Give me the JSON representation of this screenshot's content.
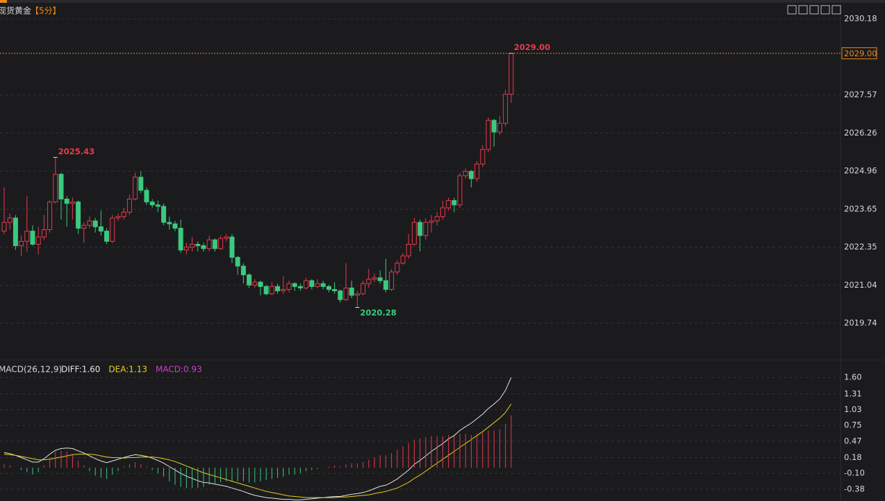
{
  "chart_data": {
    "type": "candlestick",
    "title": "现货黄金",
    "period": "【5分】",
    "open": [
      2022.9,
      2023.2,
      2023.35,
      2022.4,
      2022.55,
      2022.9,
      2022.45,
      2022.7,
      2022.95,
      2023.9,
      2024.85,
      2024.0,
      2023.85,
      2023.9,
      2023.0,
      2023.1,
      2023.25,
      2023.05,
      2022.9,
      2022.55,
      2023.35,
      2023.4,
      2023.55,
      2024.0,
      2024.75,
      2024.3,
      2023.9,
      2023.8,
      2023.75,
      2023.2,
      2023.15,
      2023.0,
      2022.25,
      2022.35,
      2022.45,
      2022.4,
      2022.3,
      2022.6,
      2022.3,
      2022.65,
      2022.7,
      2022.0,
      2021.7,
      2021.4,
      2021.05,
      2021.15,
      2021.0,
      2020.75,
      2021.0,
      2020.85,
      2020.9,
      2021.1,
      2021.0,
      2020.95,
      2021.2,
      2021.0,
      2021.1,
      2021.0,
      2020.9,
      2020.85,
      2020.55,
      2020.95,
      2020.7,
      2020.75,
      2021.1,
      2021.25,
      2021.3,
      2021.2,
      2020.9,
      2021.5,
      2021.8,
      2022.05,
      2022.45,
      2023.2,
      2022.75,
      2023.2,
      2023.25,
      2023.4,
      2023.7,
      2023.95,
      2023.8,
      2024.8,
      2024.95,
      2024.7,
      2025.2,
      2025.7,
      2026.7,
      2026.3,
      2026.6,
      2027.6
    ],
    "high": [
      2024.4,
      2023.5,
      2023.45,
      2022.75,
      2024.1,
      2023.1,
      2023.05,
      2023.45,
      2023.95,
      2025.43,
      2024.9,
      2024.1,
      2024.05,
      2023.95,
      2023.2,
      2023.4,
      2023.35,
      2023.6,
      2023.0,
      2023.45,
      2023.5,
      2023.7,
      2024.15,
      2024.9,
      2024.95,
      2024.4,
      2024.0,
      2023.95,
      2023.85,
      2023.4,
      2023.25,
      2023.3,
      2022.5,
      2022.7,
      2022.55,
      2022.5,
      2022.75,
      2022.65,
      2022.75,
      2022.8,
      2022.8,
      2022.05,
      2021.8,
      2021.45,
      2021.25,
      2021.2,
      2021.05,
      2021.15,
      2021.1,
      2021.35,
      2021.2,
      2021.15,
      2021.1,
      2021.3,
      2021.25,
      2021.25,
      2021.2,
      2021.05,
      2021.15,
      2020.9,
      2021.8,
      2021.2,
      2020.85,
      2021.2,
      2021.6,
      2021.45,
      2021.55,
      2021.95,
      2021.6,
      2021.9,
      2022.15,
      2022.8,
      2023.35,
      2023.3,
      2023.35,
      2023.45,
      2023.55,
      2023.95,
      2024.05,
      2024.05,
      2024.9,
      2025.05,
      2025.0,
      2025.3,
      2025.85,
      2026.8,
      2026.75,
      2026.85,
      2027.75,
      2029.0
    ],
    "low": [
      2022.8,
      2022.95,
      2022.25,
      2022.05,
      2022.2,
      2022.4,
      2022.1,
      2022.6,
      2022.85,
      2023.85,
      2023.3,
      2023.05,
      2023.3,
      2022.8,
      2022.5,
      2023.0,
      2022.85,
      2022.75,
      2022.45,
      2022.5,
      2023.25,
      2023.3,
      2023.45,
      2023.95,
      2024.2,
      2023.8,
      2023.7,
      2023.55,
      2023.1,
      2022.95,
      2022.9,
      2022.15,
      2022.1,
      2022.2,
      2022.2,
      2022.2,
      2022.2,
      2022.2,
      2022.25,
      2022.55,
      2021.8,
      2021.4,
      2021.1,
      2020.95,
      2020.95,
      2020.7,
      2020.7,
      2020.7,
      2020.75,
      2020.75,
      2020.8,
      2020.85,
      2020.85,
      2020.9,
      2020.9,
      2020.95,
      2020.9,
      2020.8,
      2020.75,
      2020.45,
      2020.5,
      2020.6,
      2020.28,
      2020.7,
      2020.95,
      2021.15,
      2021.1,
      2020.8,
      2020.85,
      2021.4,
      2021.75,
      2021.95,
      2022.4,
      2022.2,
      2022.6,
      2022.85,
      2023.1,
      2023.3,
      2023.6,
      2023.55,
      2023.7,
      2024.7,
      2024.4,
      2024.6,
      2025.1,
      2025.6,
      2025.8,
      2026.2,
      2026.5,
      2027.3
    ],
    "close": [
      2023.2,
      2023.35,
      2022.4,
      2022.55,
      2022.9,
      2022.45,
      2022.7,
      2022.95,
      2023.9,
      2024.85,
      2024.0,
      2023.85,
      2023.9,
      2023.0,
      2023.1,
      2023.25,
      2023.05,
      2022.9,
      2022.55,
      2023.35,
      2023.4,
      2023.55,
      2024.0,
      2024.75,
      2024.3,
      2023.9,
      2023.8,
      2023.75,
      2023.2,
      2023.15,
      2023.0,
      2022.25,
      2022.35,
      2022.45,
      2022.4,
      2022.3,
      2022.6,
      2022.3,
      2022.65,
      2022.7,
      2022.0,
      2021.7,
      2021.4,
      2021.05,
      2021.15,
      2021.0,
      2020.75,
      2021.0,
      2020.85,
      2020.9,
      2021.1,
      2021.0,
      2020.95,
      2021.2,
      2021.0,
      2021.1,
      2021.0,
      2020.9,
      2020.85,
      2020.55,
      2020.95,
      2020.7,
      2020.75,
      2021.1,
      2021.25,
      2021.3,
      2021.2,
      2020.9,
      2021.5,
      2021.8,
      2022.05,
      2022.45,
      2023.2,
      2022.75,
      2023.2,
      2023.25,
      2023.4,
      2023.7,
      2023.95,
      2023.8,
      2024.8,
      2024.95,
      2024.7,
      2025.2,
      2025.7,
      2026.7,
      2026.3,
      2026.6,
      2027.6,
      2029.0
    ],
    "up_color": "#e8394e",
    "down_color": "#3cc97f",
    "ylim": [
      2018.91,
      2030.59
    ],
    "yticks": [
      2030.18,
      2027.57,
      2026.26,
      2024.96,
      2023.65,
      2022.35,
      2021.04,
      2019.74
    ],
    "grid": true,
    "annotations": [
      {
        "value": 2025.43,
        "label": "2025.43"
      },
      {
        "value": 2020.28,
        "label": "2020.28"
      },
      {
        "value": 2029,
        "label": "2029.00"
      }
    ],
    "last_price": {
      "value": 2029,
      "label": "2029.00"
    },
    "macd": {
      "indicator": "MACD(26,12,9)",
      "legend": [
        "DIFF:1.60",
        "DEA:1.13",
        "MACD:0.93"
      ],
      "series": [
        {
          "name": "DIFF",
          "color": "#e6e6e6",
          "values": [
            0.27,
            0.25,
            0.22,
            0.18,
            0.14,
            0.1,
            0.1,
            0.16,
            0.24,
            0.31,
            0.34,
            0.35,
            0.34,
            0.3,
            0.26,
            0.21,
            0.16,
            0.12,
            0.09,
            0.12,
            0.15,
            0.18,
            0.21,
            0.23,
            0.22,
            0.2,
            0.17,
            0.13,
            0.08,
            0.02,
            -0.04,
            -0.1,
            -0.15,
            -0.19,
            -0.23,
            -0.26,
            -0.27,
            -0.29,
            -0.31,
            -0.33,
            -0.36,
            -0.39,
            -0.42,
            -0.46,
            -0.49,
            -0.51,
            -0.53,
            -0.54,
            -0.55,
            -0.56,
            -0.56,
            -0.57,
            -0.57,
            -0.56,
            -0.55,
            -0.54,
            -0.53,
            -0.52,
            -0.51,
            -0.51,
            -0.49,
            -0.47,
            -0.46,
            -0.44,
            -0.41,
            -0.37,
            -0.33,
            -0.31,
            -0.26,
            -0.2,
            -0.12,
            -0.04,
            0.06,
            0.13,
            0.21,
            0.29,
            0.36,
            0.43,
            0.51,
            0.57,
            0.66,
            0.73,
            0.79,
            0.87,
            0.95,
            1.05,
            1.13,
            1.22,
            1.37,
            1.6
          ]
        },
        {
          "name": "DEA",
          "color": "#e8d21d",
          "values": [
            0.24,
            0.23,
            0.22,
            0.2,
            0.18,
            0.16,
            0.14,
            0.14,
            0.15,
            0.17,
            0.19,
            0.21,
            0.23,
            0.24,
            0.24,
            0.24,
            0.23,
            0.21,
            0.19,
            0.18,
            0.18,
            0.17,
            0.18,
            0.18,
            0.19,
            0.19,
            0.19,
            0.18,
            0.16,
            0.14,
            0.11,
            0.07,
            0.03,
            -0.01,
            -0.05,
            -0.09,
            -0.12,
            -0.15,
            -0.18,
            -0.21,
            -0.24,
            -0.27,
            -0.3,
            -0.33,
            -0.36,
            -0.39,
            -0.42,
            -0.44,
            -0.46,
            -0.48,
            -0.5,
            -0.51,
            -0.52,
            -0.53,
            -0.53,
            -0.53,
            -0.53,
            -0.53,
            -0.53,
            -0.52,
            -0.52,
            -0.51,
            -0.5,
            -0.49,
            -0.48,
            -0.46,
            -0.44,
            -0.42,
            -0.39,
            -0.36,
            -0.31,
            -0.26,
            -0.19,
            -0.13,
            -0.06,
            0.01,
            0.08,
            0.15,
            0.22,
            0.29,
            0.36,
            0.43,
            0.5,
            0.57,
            0.64,
            0.72,
            0.8,
            0.88,
            0.98,
            1.13
          ]
        },
        {
          "name": "MACD",
          "color": "#d23bd2",
          "values": [
            0.06,
            0.04,
            0,
            -0.04,
            -0.08,
            -0.12,
            -0.08,
            0.04,
            0.18,
            0.28,
            0.3,
            0.28,
            0.22,
            0.12,
            0.04,
            -0.06,
            -0.14,
            -0.18,
            -0.2,
            -0.12,
            -0.06,
            0.02,
            0.06,
            0.1,
            0.06,
            0.02,
            -0.04,
            -0.1,
            -0.16,
            -0.24,
            -0.3,
            -0.34,
            -0.36,
            -0.36,
            -0.36,
            -0.34,
            -0.3,
            -0.28,
            -0.26,
            -0.24,
            -0.24,
            -0.24,
            -0.24,
            -0.26,
            -0.26,
            -0.24,
            -0.22,
            -0.2,
            -0.18,
            -0.16,
            -0.12,
            -0.12,
            -0.1,
            -0.06,
            -0.04,
            -0.02,
            0,
            0.02,
            0.04,
            0.02,
            0.06,
            0.08,
            0.08,
            0.1,
            0.14,
            0.18,
            0.22,
            0.22,
            0.26,
            0.32,
            0.38,
            0.44,
            0.5,
            0.52,
            0.54,
            0.56,
            0.56,
            0.56,
            0.58,
            0.56,
            0.6,
            0.6,
            0.58,
            0.6,
            0.62,
            0.66,
            0.66,
            0.68,
            0.78,
            0.93
          ]
        }
      ],
      "ylim": [
        -0.59,
        1.64
      ],
      "yticks": [
        {
          "value": 1.6,
          "label": "1.60"
        },
        1.31,
        1.03,
        0.75,
        0.47,
        0.18,
        {
          "value": -0.1,
          "label": "-0.10"
        },
        -0.38
      ]
    }
  }
}
